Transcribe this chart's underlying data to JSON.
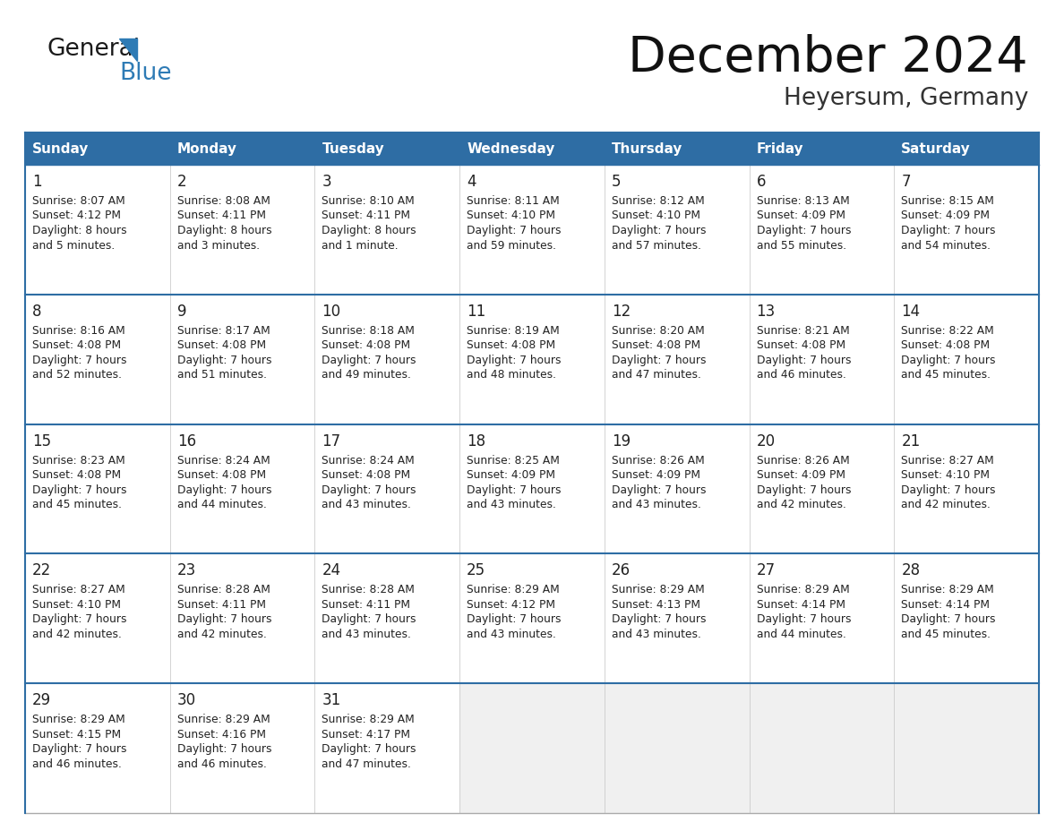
{
  "title": "December 2024",
  "subtitle": "Heyersum, Germany",
  "header_bg_color": "#2E6DA4",
  "header_text_color": "#FFFFFF",
  "day_names": [
    "Sunday",
    "Monday",
    "Tuesday",
    "Wednesday",
    "Thursday",
    "Friday",
    "Saturday"
  ],
  "cell_bg_white": "#FFFFFF",
  "cell_bg_gray": "#F0F0F0",
  "cell_text_color": "#222222",
  "border_color": "#2E6DA4",
  "week_divider_color": "#2E6DA4",
  "outer_border_color": "#AAAAAA",
  "background_color": "#FFFFFF",
  "logo_general_color": "#1a1a1a",
  "logo_blue_color": "#2E7BB5",
  "weeks": [
    [
      {
        "day": 1,
        "sunrise": "8:07 AM",
        "sunset": "4:12 PM",
        "daylight": "8 hours",
        "daylight2": "and 5 minutes."
      },
      {
        "day": 2,
        "sunrise": "8:08 AM",
        "sunset": "4:11 PM",
        "daylight": "8 hours",
        "daylight2": "and 3 minutes."
      },
      {
        "day": 3,
        "sunrise": "8:10 AM",
        "sunset": "4:11 PM",
        "daylight": "8 hours",
        "daylight2": "and 1 minute."
      },
      {
        "day": 4,
        "sunrise": "8:11 AM",
        "sunset": "4:10 PM",
        "daylight": "7 hours",
        "daylight2": "and 59 minutes."
      },
      {
        "day": 5,
        "sunrise": "8:12 AM",
        "sunset": "4:10 PM",
        "daylight": "7 hours",
        "daylight2": "and 57 minutes."
      },
      {
        "day": 6,
        "sunrise": "8:13 AM",
        "sunset": "4:09 PM",
        "daylight": "7 hours",
        "daylight2": "and 55 minutes."
      },
      {
        "day": 7,
        "sunrise": "8:15 AM",
        "sunset": "4:09 PM",
        "daylight": "7 hours",
        "daylight2": "and 54 minutes."
      }
    ],
    [
      {
        "day": 8,
        "sunrise": "8:16 AM",
        "sunset": "4:08 PM",
        "daylight": "7 hours",
        "daylight2": "and 52 minutes."
      },
      {
        "day": 9,
        "sunrise": "8:17 AM",
        "sunset": "4:08 PM",
        "daylight": "7 hours",
        "daylight2": "and 51 minutes."
      },
      {
        "day": 10,
        "sunrise": "8:18 AM",
        "sunset": "4:08 PM",
        "daylight": "7 hours",
        "daylight2": "and 49 minutes."
      },
      {
        "day": 11,
        "sunrise": "8:19 AM",
        "sunset": "4:08 PM",
        "daylight": "7 hours",
        "daylight2": "and 48 minutes."
      },
      {
        "day": 12,
        "sunrise": "8:20 AM",
        "sunset": "4:08 PM",
        "daylight": "7 hours",
        "daylight2": "and 47 minutes."
      },
      {
        "day": 13,
        "sunrise": "8:21 AM",
        "sunset": "4:08 PM",
        "daylight": "7 hours",
        "daylight2": "and 46 minutes."
      },
      {
        "day": 14,
        "sunrise": "8:22 AM",
        "sunset": "4:08 PM",
        "daylight": "7 hours",
        "daylight2": "and 45 minutes."
      }
    ],
    [
      {
        "day": 15,
        "sunrise": "8:23 AM",
        "sunset": "4:08 PM",
        "daylight": "7 hours",
        "daylight2": "and 45 minutes."
      },
      {
        "day": 16,
        "sunrise": "8:24 AM",
        "sunset": "4:08 PM",
        "daylight": "7 hours",
        "daylight2": "and 44 minutes."
      },
      {
        "day": 17,
        "sunrise": "8:24 AM",
        "sunset": "4:08 PM",
        "daylight": "7 hours",
        "daylight2": "and 43 minutes."
      },
      {
        "day": 18,
        "sunrise": "8:25 AM",
        "sunset": "4:09 PM",
        "daylight": "7 hours",
        "daylight2": "and 43 minutes."
      },
      {
        "day": 19,
        "sunrise": "8:26 AM",
        "sunset": "4:09 PM",
        "daylight": "7 hours",
        "daylight2": "and 43 minutes."
      },
      {
        "day": 20,
        "sunrise": "8:26 AM",
        "sunset": "4:09 PM",
        "daylight": "7 hours",
        "daylight2": "and 42 minutes."
      },
      {
        "day": 21,
        "sunrise": "8:27 AM",
        "sunset": "4:10 PM",
        "daylight": "7 hours",
        "daylight2": "and 42 minutes."
      }
    ],
    [
      {
        "day": 22,
        "sunrise": "8:27 AM",
        "sunset": "4:10 PM",
        "daylight": "7 hours",
        "daylight2": "and 42 minutes."
      },
      {
        "day": 23,
        "sunrise": "8:28 AM",
        "sunset": "4:11 PM",
        "daylight": "7 hours",
        "daylight2": "and 42 minutes."
      },
      {
        "day": 24,
        "sunrise": "8:28 AM",
        "sunset": "4:11 PM",
        "daylight": "7 hours",
        "daylight2": "and 43 minutes."
      },
      {
        "day": 25,
        "sunrise": "8:29 AM",
        "sunset": "4:12 PM",
        "daylight": "7 hours",
        "daylight2": "and 43 minutes."
      },
      {
        "day": 26,
        "sunrise": "8:29 AM",
        "sunset": "4:13 PM",
        "daylight": "7 hours",
        "daylight2": "and 43 minutes."
      },
      {
        "day": 27,
        "sunrise": "8:29 AM",
        "sunset": "4:14 PM",
        "daylight": "7 hours",
        "daylight2": "and 44 minutes."
      },
      {
        "day": 28,
        "sunrise": "8:29 AM",
        "sunset": "4:14 PM",
        "daylight": "7 hours",
        "daylight2": "and 45 minutes."
      }
    ],
    [
      {
        "day": 29,
        "sunrise": "8:29 AM",
        "sunset": "4:15 PM",
        "daylight": "7 hours",
        "daylight2": "and 46 minutes."
      },
      {
        "day": 30,
        "sunrise": "8:29 AM",
        "sunset": "4:16 PM",
        "daylight": "7 hours",
        "daylight2": "and 46 minutes."
      },
      {
        "day": 31,
        "sunrise": "8:29 AM",
        "sunset": "4:17 PM",
        "daylight": "7 hours",
        "daylight2": "and 47 minutes."
      },
      null,
      null,
      null,
      null
    ]
  ]
}
